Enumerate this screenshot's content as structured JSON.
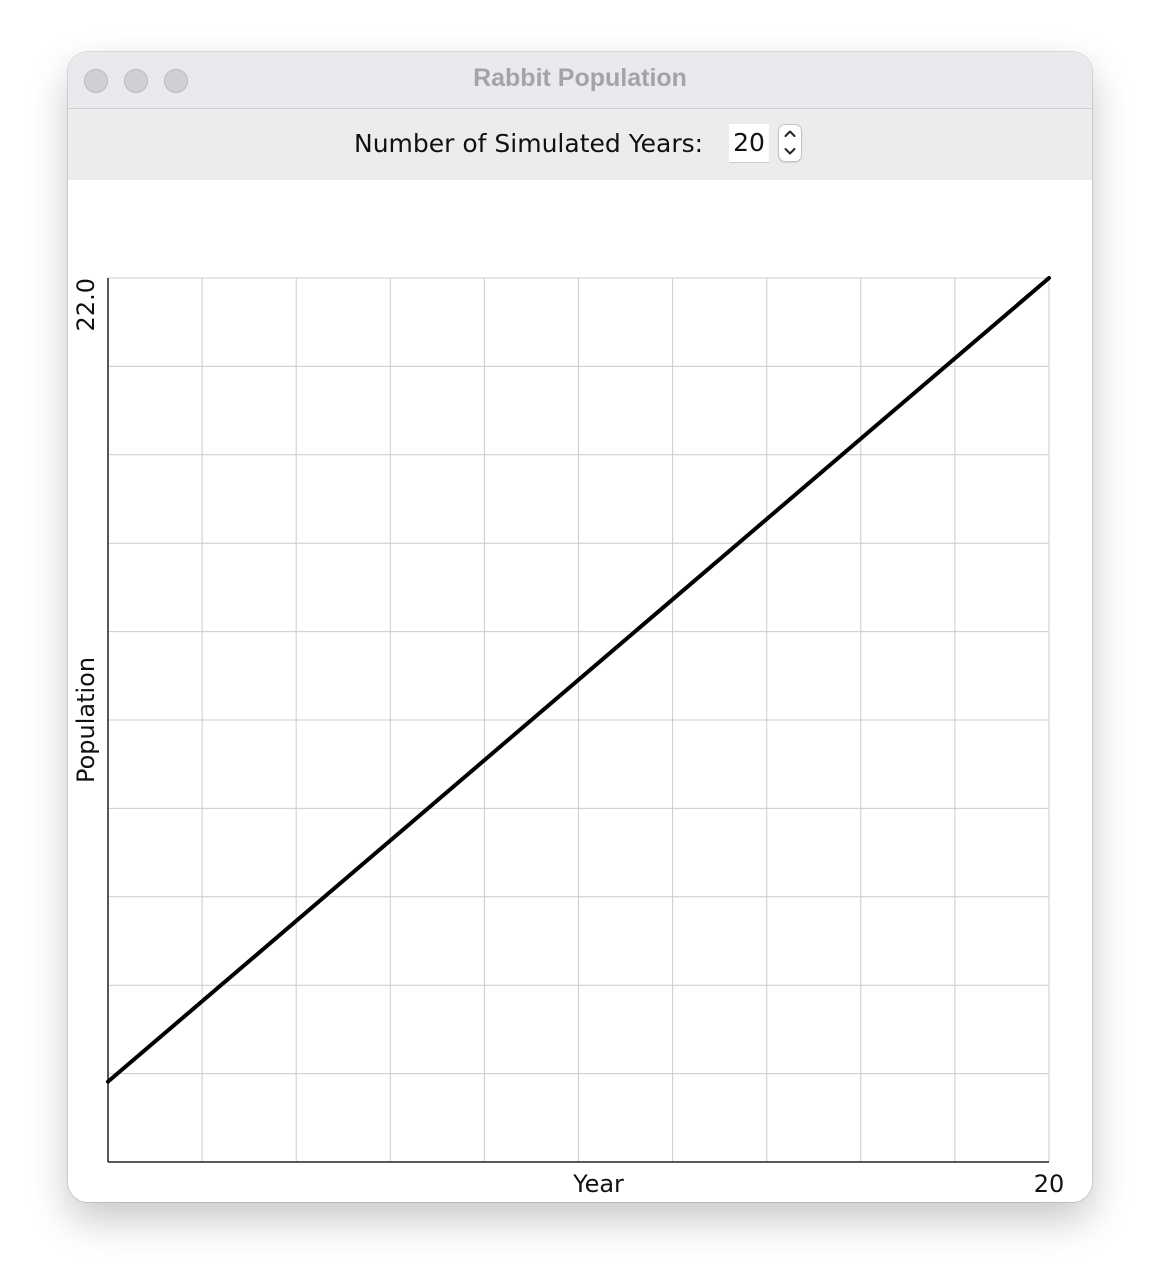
{
  "window": {
    "title": "Rabbit Population",
    "buttons": [
      "close",
      "minimize",
      "zoom"
    ]
  },
  "toolbar": {
    "label": "Number of Simulated Years:",
    "years_value": "20"
  },
  "chart_data": {
    "type": "line",
    "xlabel": "Year",
    "ylabel": "Population",
    "xlim": [
      0,
      20
    ],
    "ylim": [
      0,
      22.0
    ],
    "x_tick_labels": [
      "20"
    ],
    "y_tick_labels": [
      "22.0"
    ],
    "grid": true,
    "grid_divisions": {
      "x": 10,
      "y": 10
    },
    "series": [
      {
        "x": [
          0,
          20
        ],
        "y": [
          2.0,
          22.0
        ],
        "color": "#000000"
      }
    ]
  }
}
